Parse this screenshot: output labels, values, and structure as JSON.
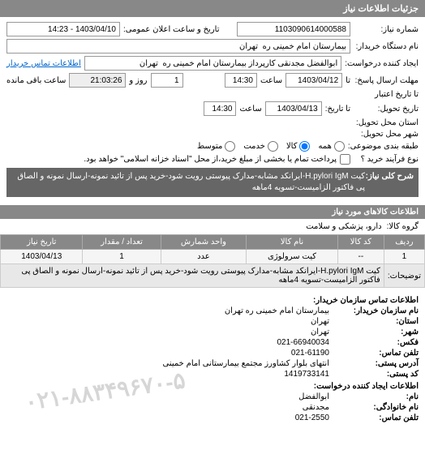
{
  "header": {
    "title": "جزئیات اطلاعات نیاز"
  },
  "form": {
    "req_no_label": "شماره نیاز:",
    "req_no": "1103090614000588",
    "announce_label": "تاریخ و ساعت اعلان عمومی:",
    "announce_val": "1403/04/10 - 14:23",
    "buyer_label": "نام دستگاه خریدار:",
    "buyer_val": "بیمارستان امام خمینی ره  تهران",
    "requester_label": "ایجاد کننده درخواست:",
    "requester_val": "ابوالفضل مجدنقی کارپرداز بیمارستان امام خمینی ره  تهران",
    "contact_link": "اطلاعات تماس خریدار",
    "deadline_label": "مهلت ارسال پاسخ:",
    "deadline_ta": "تا",
    "deadline_date": "1403/04/12",
    "time_label": "ساعت",
    "deadline_time": "14:30",
    "day_label": "روز و",
    "day_val": "1",
    "remain_time": "21:03:26",
    "remain_label": "ساعت باقی مانده",
    "credit_label": "تا تاریخ اعتبار",
    "delivery_label": "تاریخ تحویل:",
    "delivery_ta": "تا تاریخ:",
    "delivery_date": "1403/04/13",
    "delivery_time": "14:30",
    "province_label": "استان محل تحویل:",
    "city_label": "شهر محل تحویل:",
    "budget_label": "طبقه بندی موضوعی:",
    "radio_all": "همه",
    "radio_kala": "کالا",
    "radio_service": "خدمت",
    "radio_medium": "متوسط",
    "purchase_label": "نوع فرآیند خرید ؟",
    "payment_check": "پرداخت تمام یا بخشی از مبلغ خرید،از محل \"اسناد خزانه اسلامی\" خواهد بود.",
    "desc_label": "شرح کلی نیاز:",
    "desc_text": "کیت H.pylori IgM-ایرانکد مشابه-مدارک پیوستی رویت شود-خرید پس از تائید نمونه-ارسال نمونه و الصاق پی فاکتور الزامیست-تسویه 4ماهه"
  },
  "items": {
    "section": "اطلاعات کالاهای مورد نیاز",
    "group_label": "گروه کالا:",
    "group_val": "دارو، پزشکی و سلامت",
    "cols": {
      "row": "ردیف",
      "code": "کد کالا",
      "name": "نام کالا",
      "unit": "واحد شمارش",
      "qty": "تعداد / مقدار",
      "date": "تاریخ نیاز"
    },
    "rows": [
      {
        "row": "1",
        "code": "--",
        "name": "کیت سرولوژی",
        "unit": "عدد",
        "qty": "1",
        "date": "1403/04/13"
      }
    ],
    "row_desc_label": "توضیحات:",
    "row_desc": "کیت H.pylori IgM-ایرانکد مشابه-مدارک پیوستی رویت شود-خرید پس از تائید نمونه-ارسال نمونه و الصاق پی فاکتور الزامیست-تسویه 4ماهه"
  },
  "footer": {
    "section": "اطلاعات تماس سازمان خریدار:",
    "org_label": "نام سازمان خریدار:",
    "org_val": "بیمارستان امام خمینی ره تهران",
    "province_label": "استان:",
    "province_val": "تهران",
    "city_label": "شهر:",
    "city_val": "تهران",
    "fax_label": "فکس:",
    "fax_val": "021-66940034",
    "phone_label": "تلفن تماس:",
    "phone_val": "021-61190",
    "address_label": "آدرس پستی:",
    "address_val": "انتهای بلوار کشاورز مجتمع بیمارستانی امام خمینی",
    "postcode_label": "کد پستی:",
    "postcode_val": "1419733141",
    "creator_section": "اطلاعات ایجاد کننده درخواست:",
    "name_label": "نام:",
    "name_val": "ابوالفضل",
    "family_label": "نام خانوادگی:",
    "family_val": "مجدنقی",
    "cphone_label": "تلفن تماس:",
    "cphone_val": "021-2550",
    "watermark": "۰۲۱-۸۸۳۴۹۶۷۰-۵"
  }
}
